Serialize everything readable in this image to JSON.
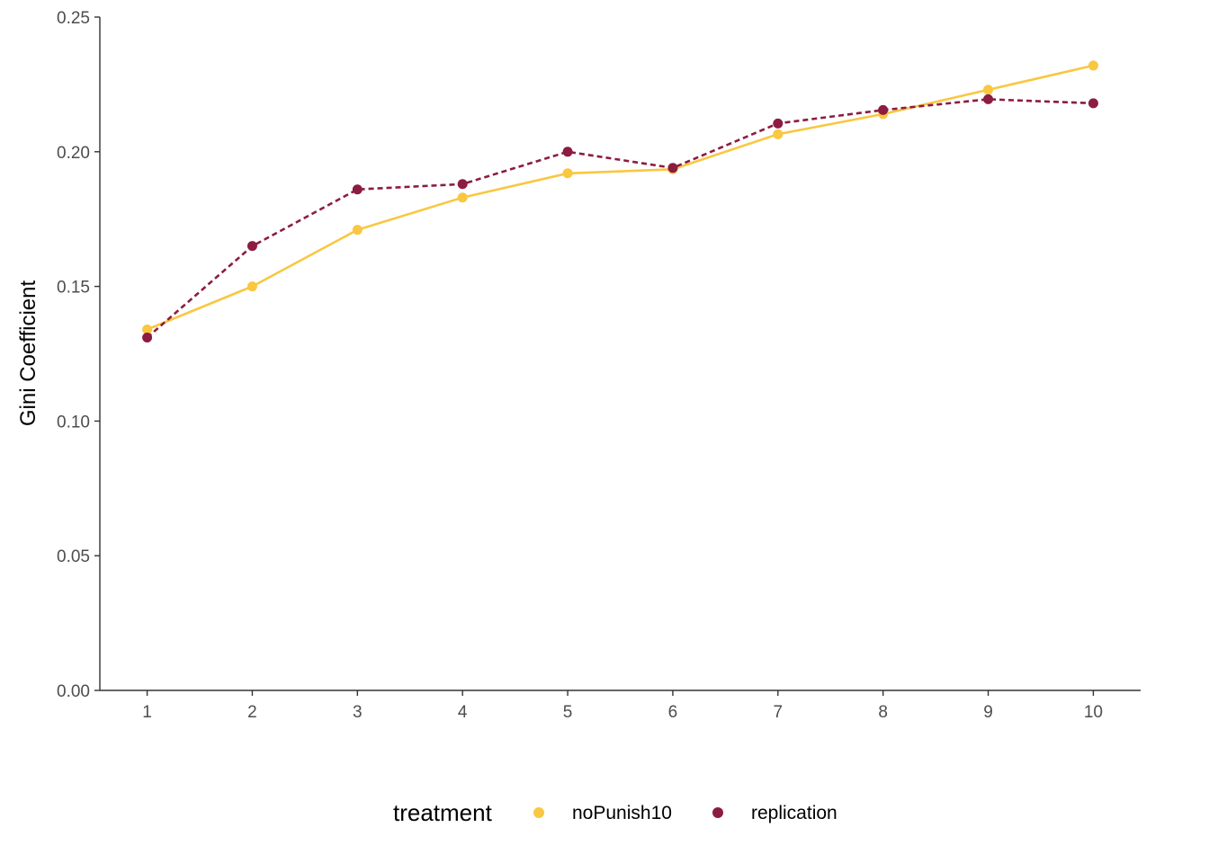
{
  "chart_data": {
    "type": "line",
    "title": "",
    "xlabel": "",
    "ylabel": "Gini Coefficient",
    "x": [
      1,
      2,
      3,
      4,
      5,
      6,
      7,
      8,
      9,
      10
    ],
    "x_tick_labels": [
      "1",
      "2",
      "3",
      "4",
      "5",
      "6",
      "7",
      "8",
      "9",
      "10"
    ],
    "xlim": [
      0.55,
      10.45
    ],
    "ylim": [
      0,
      0.25
    ],
    "y_ticks": [
      0,
      0.05,
      0.1,
      0.15,
      0.2,
      0.25
    ],
    "y_tick_labels": [
      "0.00",
      "0.05",
      "0.10",
      "0.15",
      "0.20",
      "0.25"
    ],
    "grid": false,
    "legend": {
      "title": "treatment",
      "placement": "bottom"
    },
    "series": [
      {
        "name": "noPunish10",
        "color": "#f9c740",
        "line_style": "solid",
        "values": [
          0.134,
          0.15,
          0.171,
          0.183,
          0.192,
          0.1935,
          0.2065,
          0.214,
          0.223,
          0.232
        ]
      },
      {
        "name": "replication",
        "color": "#8c1c40",
        "line_style": "dashed",
        "values": [
          0.131,
          0.165,
          0.186,
          0.188,
          0.2,
          0.194,
          0.2105,
          0.2155,
          0.2195,
          0.218
        ]
      }
    ]
  }
}
